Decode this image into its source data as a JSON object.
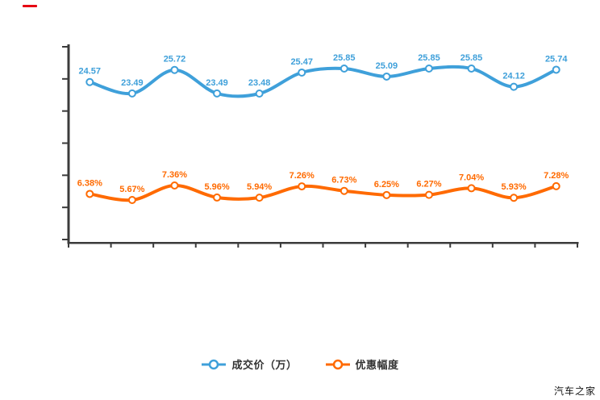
{
  "page": {
    "watermark": "汽车之家"
  },
  "decor": {
    "red_dash_color": "#E60012",
    "axis_color": "#3B3B3B"
  },
  "legend": {
    "items": [
      {
        "label": "成交价（万）",
        "color": "#3FA0DA"
      },
      {
        "label": "优惠幅度",
        "color": "#FF6A00"
      }
    ]
  },
  "chart_data": {
    "type": "line",
    "smooth": true,
    "grid": false,
    "x_axis_labels_visible": false,
    "y_axis_labels_visible": false,
    "x_tick_count": 13,
    "y_tick_count": 7,
    "legend_position": "bottom",
    "point_count": 12,
    "series": [
      {
        "name": "成交价（万）",
        "color": "#3FA0DA",
        "values": [
          24.57,
          23.49,
          25.72,
          23.49,
          23.48,
          25.47,
          25.85,
          25.09,
          25.85,
          25.85,
          24.12,
          25.74
        ],
        "labels": [
          "24.57",
          "23.49",
          "25.72",
          "23.49",
          "23.48",
          "25.47",
          "25.85",
          "25.09",
          "25.85",
          "25.85",
          "24.12",
          "25.74"
        ]
      },
      {
        "name": "优惠幅度",
        "color": "#FF6A00",
        "values": [
          6.38,
          5.67,
          7.36,
          5.96,
          5.94,
          7.26,
          6.73,
          6.25,
          6.27,
          7.04,
          5.93,
          7.28
        ],
        "labels": [
          "6.38%",
          "5.67%",
          "7.36%",
          "5.96%",
          "5.94%",
          "7.26%",
          "6.73%",
          "6.25%",
          "6.27%",
          "7.04%",
          "5.93%",
          "7.28%"
        ]
      }
    ]
  }
}
